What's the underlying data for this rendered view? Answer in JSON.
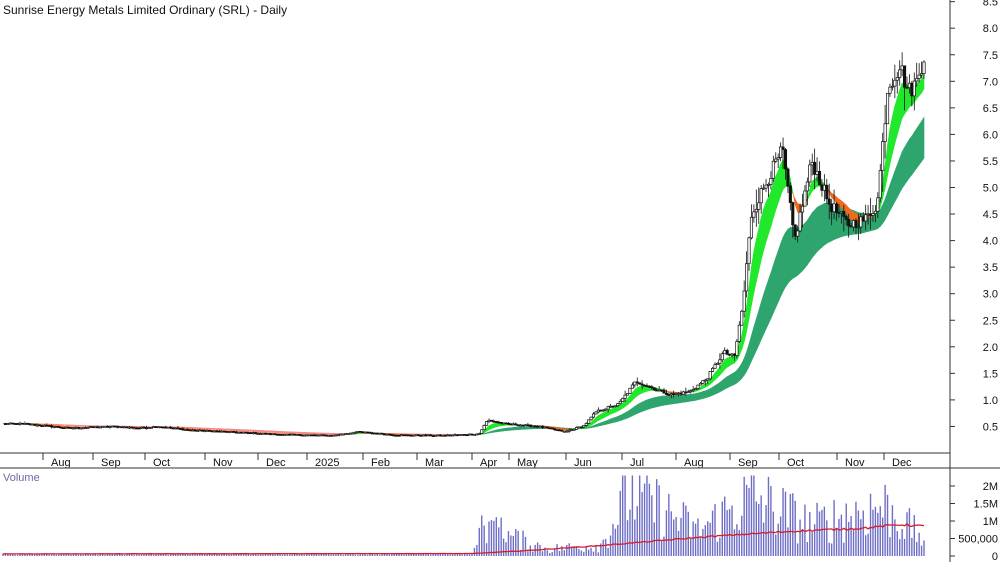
{
  "window": {
    "title": "Sunrise Energy Metals Limited Ordinary (SRL) - Daily",
    "volume_label": "Volume"
  },
  "colors": {
    "background": "#ffffff",
    "candle": "#111111",
    "volume_bar": "#6e6ec6",
    "volume_ma": "#d81b2a",
    "ribbon_short_up": "#22e82c",
    "ribbon_short_down": "#f06a1e",
    "ribbon_long_up": "#2fa56e",
    "ribbon_long_down": "#f58a8a"
  },
  "chart_data": [
    {
      "type": "candlestick",
      "title": "Sunrise Energy Metals Limited Ordinary (SRL) - Daily",
      "x_labels": [
        "Aug",
        "Sep",
        "Oct",
        "Nov",
        "Dec",
        "2025",
        "Feb",
        "Mar",
        "Apr",
        "May",
        "Jun",
        "Jul",
        "Aug",
        "Sep",
        "Oct",
        "Nov",
        "Dec"
      ],
      "y_ticks": [
        "0.5",
        "1.0",
        "1.5",
        "2.0",
        "2.5",
        "3.0",
        "3.5",
        "4.0",
        "4.5",
        "5.0",
        "5.5",
        "6.0",
        "6.5",
        "7.0",
        "7.5",
        "8.0",
        "8.5"
      ],
      "ylim": [
        0,
        8.7
      ],
      "scale": "linear",
      "close_series_approx": [
        {
          "x": "2024-07-15",
          "y": 0.55
        },
        {
          "x": "2024-07-25",
          "y": 0.52
        },
        {
          "x": "2024-08-10",
          "y": 0.47
        },
        {
          "x": "2024-09-05",
          "y": 0.5
        },
        {
          "x": "2024-09-20",
          "y": 0.47
        },
        {
          "x": "2024-10-01",
          "y": 0.5
        },
        {
          "x": "2024-10-20",
          "y": 0.43
        },
        {
          "x": "2024-11-10",
          "y": 0.4
        },
        {
          "x": "2024-12-10",
          "y": 0.35
        },
        {
          "x": "2025-01-10",
          "y": 0.33
        },
        {
          "x": "2025-01-25",
          "y": 0.4
        },
        {
          "x": "2025-02-15",
          "y": 0.34
        },
        {
          "x": "2025-03-15",
          "y": 0.33
        },
        {
          "x": "2025-04-05",
          "y": 0.36
        },
        {
          "x": "2025-04-10",
          "y": 0.62
        },
        {
          "x": "2025-04-20",
          "y": 0.55
        },
        {
          "x": "2025-05-10",
          "y": 0.5
        },
        {
          "x": "2025-05-25",
          "y": 0.4
        },
        {
          "x": "2025-06-05",
          "y": 0.52
        },
        {
          "x": "2025-06-12",
          "y": 0.78
        },
        {
          "x": "2025-06-25",
          "y": 0.92
        },
        {
          "x": "2025-07-05",
          "y": 1.35
        },
        {
          "x": "2025-07-15",
          "y": 1.22
        },
        {
          "x": "2025-07-25",
          "y": 1.1
        },
        {
          "x": "2025-08-05",
          "y": 1.15
        },
        {
          "x": "2025-08-15",
          "y": 1.4
        },
        {
          "x": "2025-08-25",
          "y": 1.9
        },
        {
          "x": "2025-08-31",
          "y": 1.8
        },
        {
          "x": "2025-09-05",
          "y": 2.8
        },
        {
          "x": "2025-09-10",
          "y": 4.5
        },
        {
          "x": "2025-09-20",
          "y": 5.2
        },
        {
          "x": "2025-09-28",
          "y": 5.7
        },
        {
          "x": "2025-10-05",
          "y": 4.0
        },
        {
          "x": "2025-10-15",
          "y": 5.5
        },
        {
          "x": "2025-10-25",
          "y": 4.7
        },
        {
          "x": "2025-11-05",
          "y": 4.3
        },
        {
          "x": "2025-11-15",
          "y": 4.4
        },
        {
          "x": "2025-11-22",
          "y": 4.7
        },
        {
          "x": "2025-11-28",
          "y": 6.9
        },
        {
          "x": "2025-12-05",
          "y": 7.3
        },
        {
          "x": "2025-12-10",
          "y": 6.8
        },
        {
          "x": "2025-12-15",
          "y": 7.0
        },
        {
          "x": "2025-12-19",
          "y": 7.5
        }
      ],
      "ribbons": [
        {
          "trend": "short-term",
          "color_up": "#22e82c",
          "color_down": "#f06a1e"
        },
        {
          "trend": "long-term",
          "color_up": "#2fa56e",
          "color_down": "#f58a8a"
        }
      ],
      "grid": false
    },
    {
      "type": "bar",
      "title": "Volume",
      "y_ticks": [
        "0",
        "500,000",
        "1M",
        "1.5M",
        "2M"
      ],
      "ylim": [
        0,
        2300000
      ],
      "volume_approx": [
        {
          "x": "2024-07-10",
          "y": 60000
        },
        {
          "x": "2025-04-01",
          "y": 70000
        },
        {
          "x": "2025-04-08",
          "y": 1000000
        },
        {
          "x": "2025-05-15",
          "y": 250000
        },
        {
          "x": "2025-06-15",
          "y": 400000
        },
        {
          "x": "2025-07-01",
          "y": 2300000
        },
        {
          "x": "2025-08-10",
          "y": 900000
        },
        {
          "x": "2025-09-10",
          "y": 2100000
        },
        {
          "x": "2025-10-15",
          "y": 1100000
        },
        {
          "x": "2025-11-25",
          "y": 1800000
        },
        {
          "x": "2025-12-19",
          "y": 600000
        }
      ],
      "ma_approx": [
        {
          "x": "2024-07-10",
          "y": 60000
        },
        {
          "x": "2025-04-01",
          "y": 70000
        },
        {
          "x": "2025-05-01",
          "y": 150000
        },
        {
          "x": "2025-06-15",
          "y": 300000
        },
        {
          "x": "2025-08-15",
          "y": 550000
        },
        {
          "x": "2025-10-01",
          "y": 700000
        },
        {
          "x": "2025-11-15",
          "y": 800000
        },
        {
          "x": "2025-12-05",
          "y": 900000
        },
        {
          "x": "2025-12-19",
          "y": 850000
        }
      ]
    }
  ]
}
